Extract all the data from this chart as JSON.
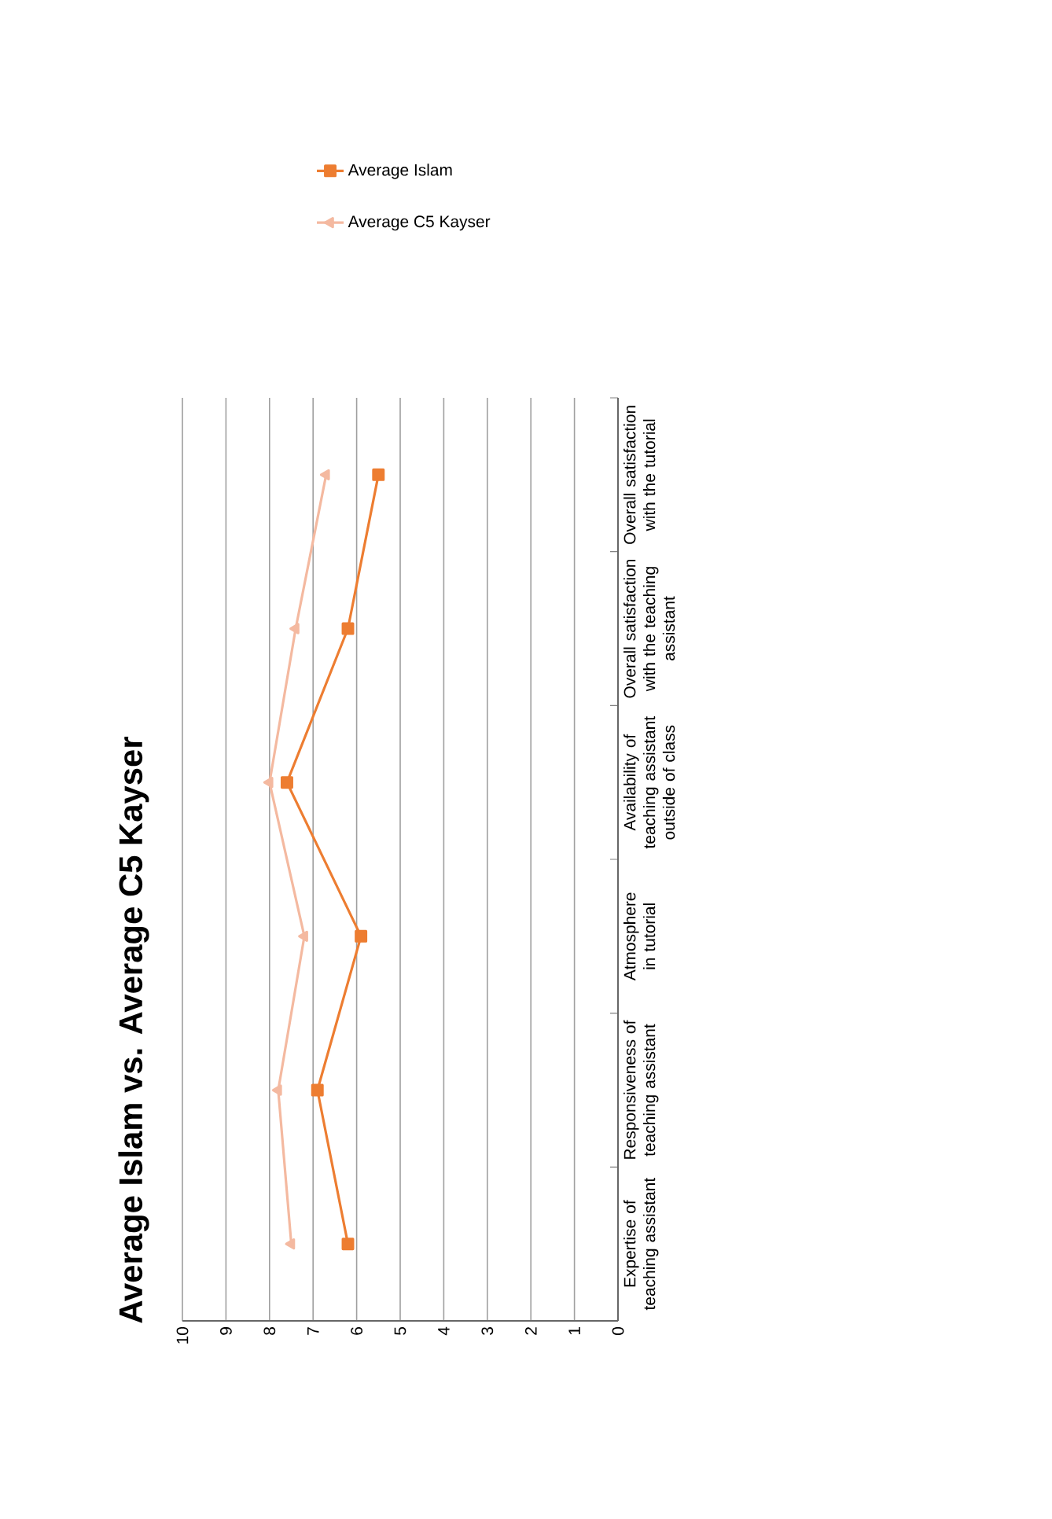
{
  "chart_data": {
    "type": "line",
    "title": "Average Islam vs. Average C5 Kayser",
    "orientation": "horizontal",
    "categories": [
      "Overall satisfaction with the tutorial",
      "Overall satisfaction with the teaching assistant",
      "Availability of teaching assistant outside of class",
      "Atmosphere in tutorial",
      "Responsiveness of teaching assistant",
      "Expertise of teaching assistant"
    ],
    "series": [
      {
        "name": "Average Islam",
        "color": "#ed7d31",
        "marker": "square",
        "values": [
          5.5,
          6.2,
          7.6,
          5.9,
          6.9,
          6.2
        ]
      },
      {
        "name": "Average C5 Kayser",
        "color": "#f4b9a0",
        "marker": "triangle",
        "values": [
          6.7,
          7.4,
          8.0,
          7.2,
          7.8,
          7.5
        ]
      }
    ],
    "xlim": [
      10,
      0
    ],
    "xticks": [
      10,
      9,
      8,
      7,
      6,
      5,
      4,
      3,
      2,
      1,
      0
    ],
    "grid": "x",
    "legend": "top",
    "line_style": "solid"
  }
}
